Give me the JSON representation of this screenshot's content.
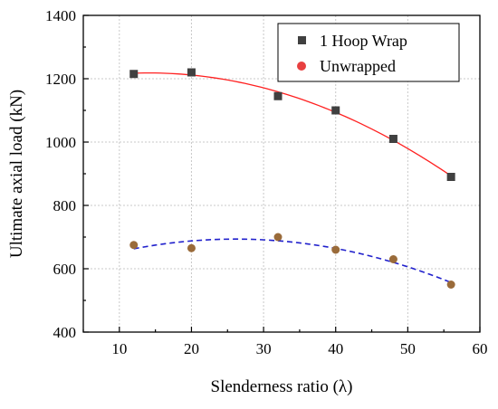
{
  "chart_data": {
    "type": "scatter",
    "xlabel": "Slenderness ratio (λ)",
    "ylabel": "Ultimate axial load (kN)",
    "xlim": [
      5,
      60
    ],
    "ylim": [
      400,
      1400
    ],
    "xticks": [
      10,
      20,
      30,
      40,
      50,
      60
    ],
    "yticks": [
      400,
      600,
      800,
      1000,
      1200,
      1400
    ],
    "grid": true,
    "legend_position": "top-right",
    "series": [
      {
        "name": "1 Hoop Wrap",
        "marker": "square",
        "color": "#404040",
        "x": [
          12,
          20,
          32,
          40,
          48,
          56
        ],
        "y": [
          1215,
          1220,
          1145,
          1100,
          1010,
          890
        ],
        "fit": {
          "style": "solid",
          "color": "#ff2020",
          "x_range": [
            12,
            56
          ]
        }
      },
      {
        "name": "Unwrapped",
        "marker": "circle",
        "color": "#e84040",
        "points_color": "#9a6b3a",
        "x": [
          12,
          20,
          32,
          40,
          48,
          56
        ],
        "y": [
          675,
          665,
          700,
          660,
          630,
          550
        ],
        "fit": {
          "style": "dashed",
          "color": "#2020cc",
          "x_range": [
            12,
            56
          ]
        }
      }
    ]
  }
}
